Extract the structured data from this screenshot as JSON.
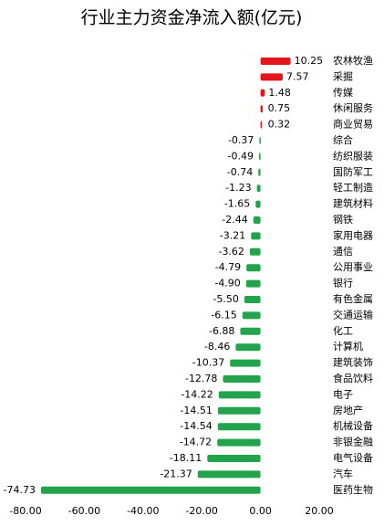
{
  "chart_data": {
    "type": "hbar",
    "title": "行业主力资金净流入额(亿元)",
    "categories": [
      "农林牧渔",
      "采掘",
      "传媒",
      "休闲服务",
      "商业贸易",
      "综合",
      "纺织服装",
      "国防军工",
      "轻工制造",
      "建筑材料",
      "钢铁",
      "家用电器",
      "通信",
      "公用事业",
      "银行",
      "有色金属",
      "交通运输",
      "化工",
      "计算机",
      "建筑装饰",
      "食品饮料",
      "电子",
      "房地产",
      "机械设备",
      "非银金融",
      "电气设备",
      "汽车",
      "医药生物"
    ],
    "values": [
      10.25,
      7.57,
      1.48,
      0.75,
      0.32,
      -0.37,
      -0.49,
      -0.74,
      -1.23,
      -1.65,
      -2.44,
      -3.21,
      -3.62,
      -4.79,
      -4.9,
      -5.5,
      -6.15,
      -6.88,
      -8.46,
      -10.37,
      -12.78,
      -14.22,
      -14.51,
      -14.54,
      -14.72,
      -18.11,
      -21.37,
      -74.73
    ],
    "value_labels": [
      "10.25",
      "7.57",
      "1.48",
      "0.75",
      "0.32",
      "-0.37",
      "-0.49",
      "-0.74",
      "-1.23",
      "-1.65",
      "-2.44",
      "-3.21",
      "-3.62",
      "-4.79",
      "-4.90",
      "-5.50",
      "-6.15",
      "-6.88",
      "-8.46",
      "-10.37",
      "-12.78",
      "-14.22",
      "-14.51",
      "-14.54",
      "-14.72",
      "-18.11",
      "-21.37",
      "-74.73"
    ],
    "positive_color": "#e3161c",
    "negative_color": "#23a44c",
    "xlim": [
      -80,
      20
    ],
    "xticks": [
      {
        "value": -80,
        "label": "-80.00"
      },
      {
        "value": -60,
        "label": "-60.00"
      },
      {
        "value": -40,
        "label": "-40.00"
      },
      {
        "value": -20,
        "label": "-20.00"
      },
      {
        "value": 0,
        "label": "0.00"
      },
      {
        "value": 20,
        "label": "20.00"
      }
    ]
  }
}
